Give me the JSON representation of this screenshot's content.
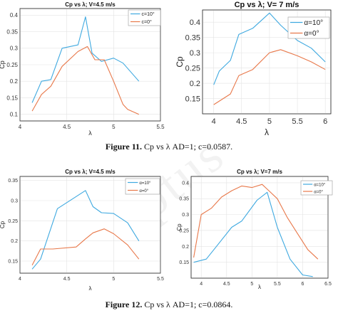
{
  "colors": {
    "blue": "#3fa9e0",
    "orange": "#e8784a",
    "grid": "#e3e3e3",
    "axis": "#333333"
  },
  "captions": [
    {
      "label": "Figure 11.",
      "text": " Cp vs λ AD=1; c=0.0587."
    },
    {
      "label": "Figure 12.",
      "text": " Cp vs λ AD=1; c=0.0864."
    }
  ],
  "watermark": "ceptus",
  "chart_data": [
    {
      "type": "line",
      "title": "Cp vs λ; V=4.5 m/s",
      "xlabel": "λ",
      "ylabel": "Cp",
      "xlim": [
        4,
        5.5
      ],
      "ylim": [
        0.08,
        0.42
      ],
      "xticks": [
        4,
        4.5,
        5,
        5.5
      ],
      "xtick_labels": [
        "4",
        "4.5",
        "5",
        "5.5"
      ],
      "yticks": [
        0.1,
        0.15,
        0.2,
        0.25,
        0.3,
        0.35,
        0.4
      ],
      "ytick_labels": [
        "0.1",
        "0.15",
        "0.2",
        "0.25",
        "0.3",
        "0.35",
        "0.4"
      ],
      "grid": true,
      "legend": "top-right",
      "series": [
        {
          "name": "c=10°",
          "color": "#3fa9e0",
          "x": [
            4.13,
            4.23,
            4.33,
            4.45,
            4.62,
            4.7,
            4.77,
            4.87,
            5.0,
            5.1,
            5.27
          ],
          "y": [
            0.135,
            0.2,
            0.205,
            0.3,
            0.31,
            0.395,
            0.285,
            0.26,
            0.27,
            0.255,
            0.2
          ]
        },
        {
          "name": "c=0°",
          "color": "#e8784a",
          "x": [
            4.13,
            4.23,
            4.33,
            4.45,
            4.62,
            4.72,
            4.8,
            4.9,
            5.0,
            5.1,
            5.15,
            5.27
          ],
          "y": [
            0.11,
            0.16,
            0.185,
            0.245,
            0.29,
            0.305,
            0.265,
            0.265,
            0.2,
            0.13,
            0.115,
            0.1
          ]
        }
      ]
    },
    {
      "type": "line",
      "title": "Cp vs λ; V= 7 m/s",
      "xlabel": "λ",
      "ylabel": "Cp",
      "xlim": [
        3.8,
        6.1
      ],
      "ylim": [
        0.1,
        0.44
      ],
      "xticks": [
        4,
        4.5,
        5,
        5.5,
        6
      ],
      "xtick_labels": [
        "4",
        "4.5",
        "5",
        "5.5",
        "6"
      ],
      "yticks": [
        0.15,
        0.2,
        0.25,
        0.3,
        0.35,
        0.4
      ],
      "ytick_labels": [
        "0.15",
        "0.2",
        "0.25",
        "0.3",
        "0.35",
        "0.4"
      ],
      "grid": true,
      "legend": "top-right",
      "series": [
        {
          "name": "α=10°",
          "color": "#3fa9e0",
          "x": [
            4.0,
            4.1,
            4.3,
            4.45,
            4.7,
            5.0,
            5.2,
            5.5,
            5.75,
            6.0
          ],
          "y": [
            0.195,
            0.24,
            0.275,
            0.36,
            0.38,
            0.43,
            0.39,
            0.34,
            0.315,
            0.27
          ]
        },
        {
          "name": "α=0°",
          "color": "#e8784a",
          "x": [
            4.0,
            4.3,
            4.45,
            4.7,
            5.0,
            5.2,
            5.5,
            5.75,
            6.0
          ],
          "y": [
            0.13,
            0.165,
            0.225,
            0.245,
            0.3,
            0.31,
            0.29,
            0.27,
            0.245
          ]
        }
      ]
    },
    {
      "type": "line",
      "title": "Cp vs λ; V=4.5 m/s",
      "xlabel": "λ",
      "ylabel": "Cp",
      "xlim": [
        4,
        5.5
      ],
      "ylim": [
        0.12,
        0.36
      ],
      "xticks": [
        4,
        4.5,
        5,
        5.5
      ],
      "xtick_labels": [
        "4",
        "4.5",
        "5",
        "5.5"
      ],
      "yticks": [
        0.15,
        0.2,
        0.25,
        0.3,
        0.35
      ],
      "ytick_labels": [
        "0.15",
        "0.2",
        "0.25",
        "0.3",
        "0.35"
      ],
      "grid": true,
      "legend": "top-right",
      "series": [
        {
          "name": "α=10°",
          "color": "#3fa9e0",
          "x": [
            4.13,
            4.22,
            4.4,
            4.6,
            4.7,
            4.78,
            4.87,
            5.0,
            5.15,
            5.27
          ],
          "y": [
            0.13,
            0.155,
            0.28,
            0.31,
            0.325,
            0.285,
            0.27,
            0.268,
            0.245,
            0.2
          ]
        },
        {
          "name": "α=0°",
          "color": "#e8784a",
          "x": [
            4.13,
            4.22,
            4.35,
            4.6,
            4.7,
            4.78,
            4.9,
            5.0,
            5.15,
            5.27
          ],
          "y": [
            0.14,
            0.18,
            0.18,
            0.185,
            0.205,
            0.22,
            0.23,
            0.218,
            0.19,
            0.155
          ]
        }
      ]
    },
    {
      "type": "line",
      "title": "Cp vs λ; V=7 m/s",
      "xlabel": "λ",
      "ylabel": "Cp",
      "xlim": [
        3.8,
        6.5
      ],
      "ylim": [
        0.1,
        0.42
      ],
      "xticks": [
        4,
        4.5,
        5,
        5.5,
        6,
        6.5
      ],
      "xtick_labels": [
        "4",
        "4.5",
        "5",
        "5.5",
        "6",
        "6.5"
      ],
      "yticks": [
        0.15,
        0.2,
        0.25,
        0.3,
        0.35,
        0.4
      ],
      "ytick_labels": [
        "0.15",
        "0.2",
        "0.25",
        "0.3",
        "0.35",
        "0.4"
      ],
      "grid": true,
      "legend": "top-right",
      "series": [
        {
          "name": "α=10°",
          "color": "#3fa9e0",
          "x": [
            3.85,
            4.1,
            4.3,
            4.6,
            4.8,
            5.1,
            5.3,
            5.5,
            5.75,
            6.0,
            6.2
          ],
          "y": [
            0.15,
            0.16,
            0.2,
            0.26,
            0.28,
            0.345,
            0.37,
            0.26,
            0.16,
            0.11,
            0.105
          ]
        },
        {
          "name": "α=0°",
          "color": "#e8784a",
          "x": [
            3.85,
            4.0,
            4.2,
            4.4,
            4.6,
            4.8,
            5.0,
            5.2,
            5.3,
            5.5,
            5.7,
            5.9,
            6.1,
            6.3
          ],
          "y": [
            0.165,
            0.3,
            0.32,
            0.355,
            0.375,
            0.39,
            0.385,
            0.395,
            0.38,
            0.35,
            0.29,
            0.24,
            0.19,
            0.16
          ]
        }
      ]
    }
  ]
}
